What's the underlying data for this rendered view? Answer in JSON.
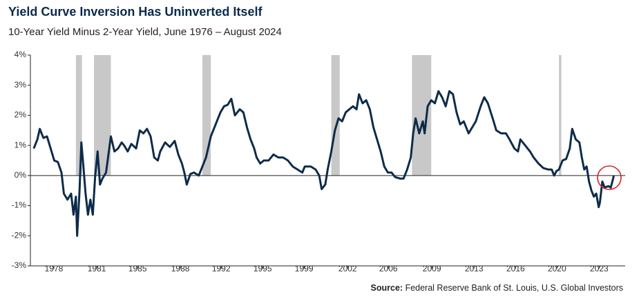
{
  "chart_data": {
    "type": "line",
    "title": "Yield Curve Inversion Has Uninverted Itself",
    "subtitle": "10-Year Yield Minus 2-Year Yield, June 1976 – August 2024",
    "source_label": "Source:",
    "source": "Federal Reserve Bank of St. Louis, U.S. Global Investors",
    "color": "#0d2b4a",
    "recession_color": "#c8c8c8",
    "recessions": [
      [
        1980.0,
        1980.5
      ],
      [
        1981.5,
        1982.9
      ],
      [
        1990.5,
        1991.2
      ],
      [
        2001.2,
        2001.9
      ],
      [
        2007.9,
        2009.5
      ],
      [
        2020.1,
        2020.3
      ]
    ],
    "x": [
      1976.5,
      1976.8,
      1977.0,
      1977.3,
      1977.6,
      1977.9,
      1978.2,
      1978.5,
      1978.8,
      1979.0,
      1979.3,
      1979.6,
      1979.8,
      1980.0,
      1980.1,
      1980.3,
      1980.45,
      1980.6,
      1980.8,
      1981.0,
      1981.2,
      1981.4,
      1981.6,
      1981.8,
      1982.0,
      1982.2,
      1982.5,
      1982.7,
      1982.9,
      1983.2,
      1983.5,
      1983.8,
      1984.0,
      1984.3,
      1984.6,
      1985.0,
      1985.3,
      1985.6,
      1985.9,
      1986.2,
      1986.5,
      1986.8,
      1987.0,
      1987.4,
      1987.8,
      1988.2,
      1988.5,
      1988.8,
      1989.0,
      1989.2,
      1989.5,
      1989.8,
      1990.2,
      1990.5,
      1990.8,
      1991.2,
      1991.6,
      1992.0,
      1992.3,
      1992.6,
      1992.9,
      1993.2,
      1993.6,
      1993.9,
      1994.2,
      1994.5,
      1994.8,
      1995.0,
      1995.3,
      1995.6,
      1996.0,
      1996.4,
      1996.8,
      1997.2,
      1997.6,
      1998.0,
      1998.4,
      1998.8,
      1999.0,
      1999.5,
      1999.9,
      2000.2,
      2000.4,
      2000.7,
      2000.9,
      2001.2,
      2001.5,
      2001.8,
      2002.1,
      2002.4,
      2002.7,
      2003.0,
      2003.3,
      2003.5,
      2003.8,
      2004.1,
      2004.4,
      2004.7,
      2005.0,
      2005.3,
      2005.6,
      2005.9,
      2006.2,
      2006.5,
      2006.9,
      2007.2,
      2007.5,
      2007.8,
      2008.0,
      2008.2,
      2008.5,
      2008.8,
      2008.95,
      2009.2,
      2009.5,
      2009.8,
      2010.1,
      2010.4,
      2010.7,
      2011.0,
      2011.3,
      2011.6,
      2011.9,
      2012.2,
      2012.6,
      2012.9,
      2013.2,
      2013.6,
      2013.9,
      2014.2,
      2014.6,
      2014.9,
      2015.3,
      2015.7,
      2016.0,
      2016.4,
      2016.7,
      2016.9,
      2017.3,
      2017.7,
      2018.0,
      2018.4,
      2018.8,
      2019.2,
      2019.5,
      2019.7,
      2019.9,
      2020.1,
      2020.4,
      2020.7,
      2021.0,
      2021.2,
      2021.5,
      2021.8,
      2022.0,
      2022.2,
      2022.4,
      2022.6,
      2022.8,
      2023.0,
      2023.2,
      2023.4,
      2023.5,
      2023.7,
      2023.9,
      2024.2,
      2024.4,
      2024.6,
      2024.65
    ],
    "values": [
      0.9,
      1.2,
      1.55,
      1.25,
      1.3,
      0.9,
      0.5,
      0.45,
      0.1,
      -0.6,
      -0.8,
      -0.6,
      -1.3,
      -0.7,
      -2.0,
      -0.5,
      1.1,
      0.4,
      -0.6,
      -1.3,
      -0.8,
      -1.3,
      0.0,
      0.8,
      -0.3,
      -0.1,
      0.1,
      0.7,
      1.3,
      0.8,
      0.9,
      1.1,
      1.0,
      0.8,
      1.05,
      0.9,
      1.5,
      1.4,
      1.55,
      1.3,
      0.6,
      0.5,
      0.8,
      1.1,
      0.95,
      1.15,
      0.7,
      0.4,
      0.1,
      -0.3,
      0.05,
      0.1,
      0.0,
      0.3,
      0.6,
      1.3,
      1.7,
      2.1,
      2.3,
      2.35,
      2.55,
      2.0,
      2.2,
      2.1,
      1.6,
      1.2,
      0.9,
      0.6,
      0.4,
      0.5,
      0.5,
      0.7,
      0.6,
      0.6,
      0.5,
      0.3,
      0.2,
      0.1,
      0.3,
      0.3,
      0.2,
      0.0,
      -0.45,
      -0.3,
      0.2,
      0.8,
      1.5,
      1.9,
      1.8,
      2.1,
      2.2,
      2.3,
      2.2,
      2.7,
      2.4,
      2.5,
      2.2,
      1.6,
      1.2,
      0.8,
      0.3,
      0.1,
      0.1,
      -0.05,
      -0.1,
      -0.1,
      0.2,
      0.6,
      1.4,
      1.9,
      1.4,
      1.8,
      1.4,
      2.3,
      2.5,
      2.4,
      2.8,
      2.6,
      2.3,
      2.8,
      2.7,
      2.1,
      1.7,
      1.8,
      1.4,
      1.6,
      1.8,
      2.3,
      2.6,
      2.4,
      1.9,
      1.5,
      1.4,
      1.4,
      1.2,
      0.9,
      0.8,
      1.2,
      1.0,
      0.8,
      0.6,
      0.4,
      0.25,
      0.2,
      0.2,
      0.0,
      0.15,
      0.2,
      0.5,
      0.55,
      0.9,
      1.55,
      1.2,
      1.1,
      0.6,
      0.2,
      0.3,
      -0.2,
      -0.5,
      -0.7,
      -0.6,
      -1.05,
      -0.9,
      -0.2,
      -0.4,
      -0.35,
      -0.4,
      -0.1,
      0.0
    ],
    "xlim": [
      1976.22,
      2025.6
    ],
    "ylim": [
      -3,
      4
    ],
    "yticks": [
      {
        "value": -3,
        "label": "-3%"
      },
      {
        "value": -2,
        "label": "-2%"
      },
      {
        "value": -1,
        "label": "-1%"
      },
      {
        "value": 0,
        "label": "0%"
      },
      {
        "value": 1,
        "label": "1%"
      },
      {
        "value": 2,
        "label": "2%"
      },
      {
        "value": 3,
        "label": "3%"
      },
      {
        "value": 4,
        "label": "4%"
      }
    ],
    "xticks": [
      {
        "value": 1978.17,
        "label": "1978"
      },
      {
        "value": 1981.73,
        "label": "1981"
      },
      {
        "value": 1985.12,
        "label": "1985"
      },
      {
        "value": 1988.67,
        "label": "1988"
      },
      {
        "value": 1992.06,
        "label": "1992"
      },
      {
        "value": 1995.5,
        "label": "1995"
      },
      {
        "value": 1998.94,
        "label": "1999"
      },
      {
        "value": 2002.56,
        "label": "2002"
      },
      {
        "value": 2005.94,
        "label": "2006"
      },
      {
        "value": 2009.55,
        "label": "2009"
      },
      {
        "value": 2013.05,
        "label": "2013"
      },
      {
        "value": 2016.5,
        "label": "2016"
      },
      {
        "value": 2019.94,
        "label": "2020"
      },
      {
        "value": 2023.44,
        "label": "2023"
      }
    ]
  }
}
